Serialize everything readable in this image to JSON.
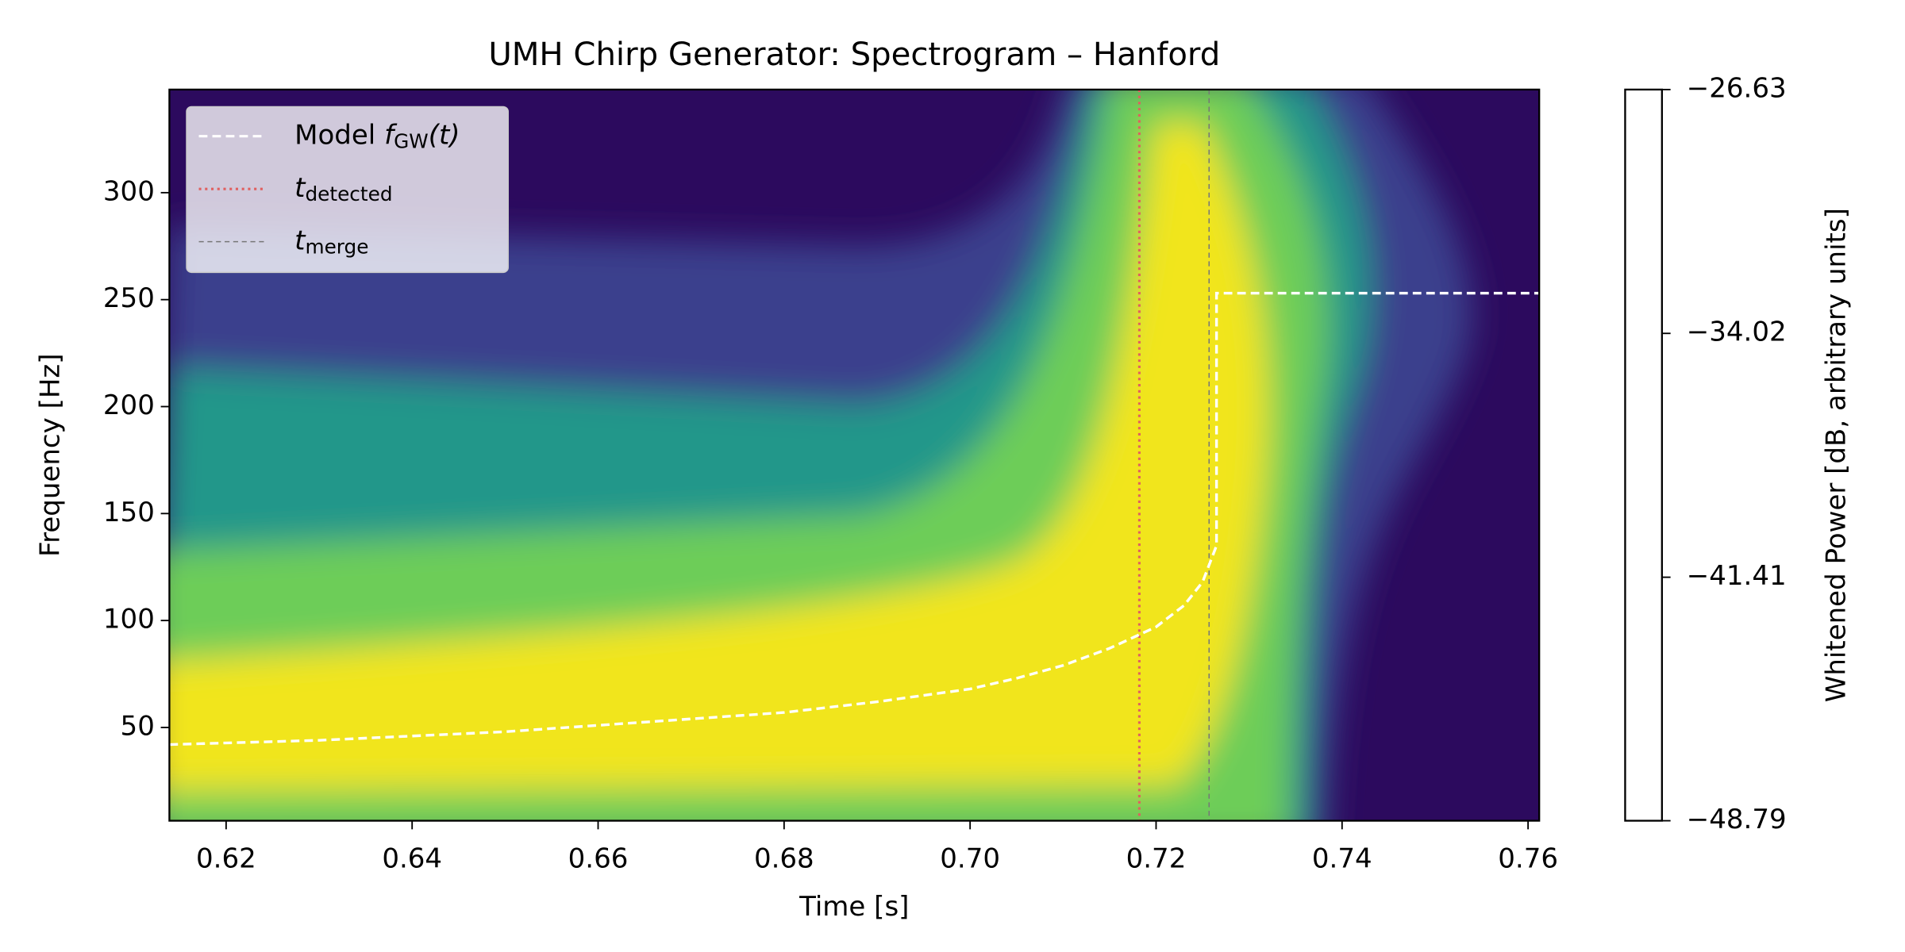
{
  "chart_data": {
    "type": "spectrogram",
    "title": "UMH Chirp Generator: Spectrogram – Hanford",
    "xlabel": "Time [s]",
    "ylabel": "Frequency [Hz]",
    "xlim": [
      0.6139,
      0.7612
    ],
    "ylim": [
      6.4,
      348.2
    ],
    "xticks": [
      0.62,
      0.64,
      0.66,
      0.68,
      {
        "value": 0.7,
        "label": "0.70"
      },
      0.72,
      0.74,
      0.76
    ],
    "yticks": [
      50,
      100,
      150,
      200,
      250,
      300
    ],
    "series": [
      {
        "name": "Model",
        "symbol": "f",
        "subscript": "GW",
        "suffix": "(t)",
        "color": "#ffffff",
        "x": [
          0.6139,
          0.63,
          0.64,
          0.65,
          0.66,
          0.67,
          0.68,
          0.69,
          0.7,
          0.705,
          0.71,
          0.715,
          0.72,
          0.723,
          0.725,
          0.7265,
          0.7265,
          0.7612
        ],
        "values": [
          42,
          44,
          46,
          48,
          51,
          54,
          57,
          62,
          68,
          73,
          79,
          87,
          97,
          107,
          118,
          135,
          253,
          253
        ]
      }
    ],
    "vlines": [
      {
        "symbol": "t",
        "subscript": "detected",
        "x": 0.7182,
        "color": "#e06060"
      },
      {
        "symbol": "t",
        "subscript": "merge",
        "x": 0.7257,
        "color": "#777777"
      }
    ],
    "colorbar": {
      "label": "Whitened Power [dB, arbitrary units]",
      "lim": [
        -48.79,
        -26.63
      ],
      "ticks": [
        {
          "value": -48.79,
          "label": "−48.79"
        },
        {
          "value": -41.41,
          "label": "−41.41"
        },
        {
          "value": -34.02,
          "label": "−34.02"
        },
        {
          "value": -26.63,
          "label": "−26.63"
        }
      ]
    }
  }
}
